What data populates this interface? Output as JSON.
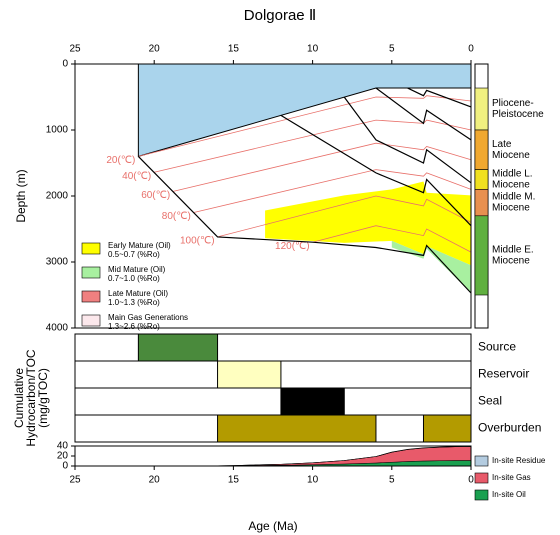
{
  "chart_data": [
    {
      "type": "burial",
      "title": "Dolgorae Ⅱ",
      "y_label": "Depth (m)",
      "xlim": [
        25,
        0
      ],
      "xticks": [
        25,
        20,
        15,
        10,
        5,
        0
      ],
      "ylim": [
        0,
        4000
      ],
      "yticks": [
        0,
        1000,
        2000,
        3000,
        4000
      ],
      "invert_y": true,
      "water": {
        "color": "#aad4ec",
        "x": [
          21,
          6,
          0
        ],
        "values": [
          1400,
          364,
          364
        ]
      },
      "zones": [
        {
          "name": "Early Mature (Oil)",
          "range": "0.5~0.7 (%Ro)",
          "color": "#ffff00",
          "x": [
            13,
            8,
            5,
            3,
            2.8,
            0
          ],
          "top": [
            2220,
            1990,
            1900,
            1780,
            1950,
            1990
          ],
          "bottom": [
            2640,
            2710,
            2680,
            2880,
            2760,
            3050
          ]
        },
        {
          "name": "Mid Mature (Oil)",
          "range": "0.7~1.0 (%Ro)",
          "color": "#a8f0a0",
          "x": [
            5,
            3,
            2.8,
            0
          ],
          "top": [
            2680,
            2880,
            2760,
            3050
          ],
          "bottom": [
            2780,
            2950,
            2800,
            3470
          ]
        },
        {
          "name": "Late Mature (Oil)",
          "range": "1.0~1.3 (%Ro)",
          "color": "#f08080"
        },
        {
          "name": "Main Gas Generations",
          "range": "1.3~2.6 (%Ro)",
          "color": "#fce8ec"
        }
      ],
      "isotherm_color": "#e8706a",
      "isotherms": [
        {
          "name": "20(℃)",
          "x": [
            21,
            6,
            3,
            2.8,
            0
          ],
          "values": [
            1400,
            500,
            520,
            480,
            560
          ]
        },
        {
          "name": "40(℃)",
          "x": [
            20,
            6,
            3,
            2.8,
            0
          ],
          "values": [
            1640,
            850,
            900,
            850,
            1000
          ]
        },
        {
          "name": "60(℃)",
          "x": [
            18.8,
            6,
            3,
            2.8,
            0
          ],
          "values": [
            1930,
            1200,
            1300,
            1250,
            1450
          ]
        },
        {
          "name": "80(℃)",
          "x": [
            17.5,
            6,
            3,
            2.8,
            0
          ],
          "values": [
            2250,
            1600,
            1700,
            1650,
            1900
          ]
        },
        {
          "name": "100(℃)",
          "x": [
            16,
            6,
            3,
            2.8,
            0
          ],
          "values": [
            2620,
            2000,
            2150,
            2050,
            2400
          ]
        },
        {
          "name": "120(℃)",
          "x": [
            10,
            6,
            3,
            2.8,
            0
          ],
          "values": [
            2700,
            2450,
            2600,
            2500,
            2850
          ]
        }
      ],
      "horizon_color": "#000000",
      "horizons": [
        {
          "x": [
            21,
            16,
            10,
            6,
            3,
            2.8,
            0
          ],
          "values": [
            1400,
            2620,
            2700,
            2780,
            2900,
            2750,
            3470
          ]
        },
        {
          "x": [
            12,
            6,
            3,
            2.8,
            0
          ],
          "values": [
            778,
            1650,
            1950,
            1750,
            2450
          ]
        },
        {
          "x": [
            8,
            6,
            3,
            2.8,
            0
          ],
          "values": [
            502,
            1150,
            1500,
            1300,
            1800
          ]
        },
        {
          "x": [
            6,
            3,
            2.8,
            0
          ],
          "values": [
            364,
            900,
            700,
            1150
          ]
        },
        {
          "x": [
            4,
            3,
            2.8,
            0
          ],
          "values": [
            364,
            480,
            400,
            650
          ]
        }
      ],
      "strata": [
        {
          "name": [
            "Pliocene-",
            "Pleistocene"
          ],
          "top": 364,
          "bottom": 1000,
          "color": "#f0f080"
        },
        {
          "name": [
            "Late",
            "Miocene"
          ],
          "top": 1000,
          "bottom": 1600,
          "color": "#f0a830"
        },
        {
          "name": [
            "Middle L.",
            "Miocene"
          ],
          "top": 1600,
          "bottom": 1900,
          "color": "#f0e020"
        },
        {
          "name": [
            "Middle M.",
            "Miocene"
          ],
          "top": 1900,
          "bottom": 2300,
          "color": "#e89050"
        },
        {
          "name": [
            "Middle E.",
            "Miocene"
          ],
          "top": 2300,
          "bottom": 3500,
          "color": "#60b040"
        }
      ]
    },
    {
      "type": "events",
      "xlim": [
        25,
        0
      ],
      "rows": [
        {
          "name": "Source",
          "color": "#4a8a3c",
          "spans": [
            [
              21,
              16
            ]
          ]
        },
        {
          "name": "Reservoir",
          "color": "#ffffc0",
          "spans": [
            [
              16,
              12
            ]
          ]
        },
        {
          "name": "Seal",
          "color": "#000000",
          "spans": [
            [
              12,
              8
            ]
          ]
        },
        {
          "name": "Overburden",
          "color": "#b39b00",
          "spans": [
            [
              16,
              6
            ],
            [
              3,
              0
            ]
          ]
        }
      ]
    },
    {
      "type": "stacked-area",
      "x_label": "Age (Ma)",
      "y_label": [
        "Cumulative",
        "Hydrocarbon/TOC",
        "(mg/gTOC)"
      ],
      "xlim": [
        25,
        0
      ],
      "xticks": [
        25,
        20,
        15,
        10,
        5,
        0
      ],
      "ylim": [
        0,
        40
      ],
      "yticks": [
        0,
        20,
        40
      ],
      "legend": "right",
      "x": [
        17,
        15,
        12,
        10,
        8,
        6,
        5,
        4,
        3,
        2,
        1,
        0
      ],
      "series": [
        {
          "name": "In-site Oil",
          "color": "#1aa050",
          "values": [
            0,
            0.5,
            1.5,
            2.5,
            4,
            6,
            7.5,
            9,
            10,
            10.5,
            11,
            11
          ]
        },
        {
          "name": "In-site Gas",
          "color": "#e85a6a",
          "values": [
            0,
            0.5,
            2,
            4,
            7,
            13,
            20,
            24,
            26,
            27,
            27.5,
            28
          ]
        },
        {
          "name": "In-site Residue",
          "color": "#b4cce0",
          "values": [
            0,
            0,
            0,
            0,
            0,
            0,
            0.3,
            0.5,
            0.5,
            0.5,
            0.5,
            0.5
          ]
        }
      ]
    }
  ]
}
